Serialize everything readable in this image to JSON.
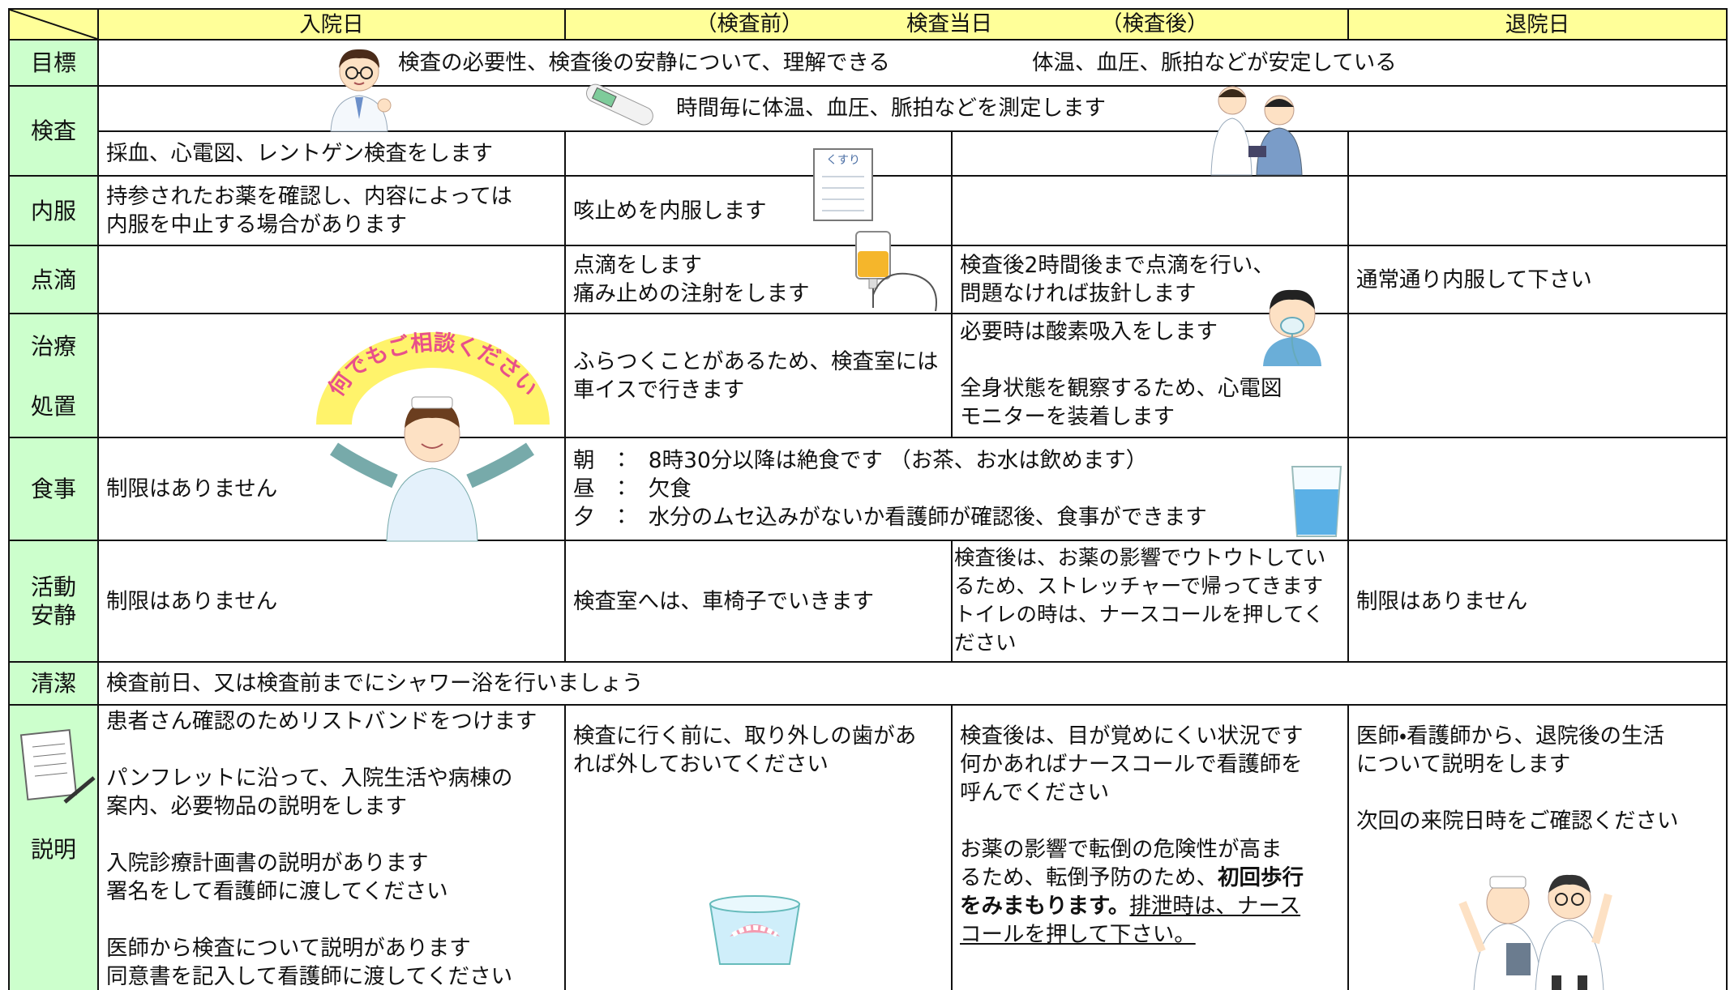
{
  "header": {
    "admission_day": "入院日",
    "before_exam": "（検査前）",
    "exam_day": "検査当日",
    "after_exam": "（検査後）",
    "discharge_day": "退院日"
  },
  "goal": {
    "label": "目標",
    "items": [
      "検査の必要性、検査後の安静について、理解できる",
      "体温、血圧、脈拍などが安定している"
    ]
  },
  "exam": {
    "label": "検査",
    "all_days": "時間毎に体温、血圧、脈拍などを測定します",
    "admission": "採血、心電図、レントゲン検査をします"
  },
  "medication": {
    "label": "内服",
    "admission": "持参されたお薬を確認し、内容によっては\n内服を中止する場合があります",
    "before_exam": "咳止めを内服します",
    "bag_label": "くすり"
  },
  "drip": {
    "label": "点滴",
    "before_exam": "点滴をします\n痛み止めの注射をします",
    "after_exam": "検査後2時間後まで点滴を行い、\n問題なければ抜針します",
    "discharge": "通常通り内服して下さい"
  },
  "treatment": {
    "label": [
      "治療",
      "処置"
    ],
    "callout": "何でもご相談ください",
    "before_exam": "ふらつくことがあるため、検査室には\n車イスで行きます",
    "after_exam": [
      "必要時は酸素吸入をします",
      "全身状態を観察するため、心電図\nモニターを装着します"
    ]
  },
  "meals": {
    "label": "食事",
    "admission": "制限はありません",
    "exam_day": [
      "朝　：　8時30分以降は絶食です （お茶、お水は飲めます）",
      "昼　：　欠食",
      "夕　：　水分のムセ込みがないか看護師が確認後、食事ができます"
    ]
  },
  "activity": {
    "label": "活動\n安静",
    "admission": "制限はありません",
    "before_exam": "検査室へは、車椅子でいきます",
    "after_exam": "検査後は、お薬の影響でウトウトしてい\nるため、ストレッチャーで帰ってきます\nトイレの時は、ナースコールを押してく\nださい",
    "discharge": "制限はありません"
  },
  "hygiene": {
    "label": "清潔",
    "text": "検査前日、又は検査前までにシャワー浴を行いましょう"
  },
  "explanation": {
    "label": "説明",
    "admission": [
      "患者さん確認のためリストバンドをつけます",
      "パンフレットに沿って、入院生活や病棟の\n案内、必要物品の説明をします",
      "入院診療計画書の説明があります\n署名をして看護師に渡してください",
      "医師から検査について説明があります\n同意書を記入して看護師に渡してください"
    ],
    "before_exam": "検査に行く前に、取り外しの歯があ\nれば外しておいてください",
    "after_exam": {
      "paragraph": "検査後は、目が覚めにくい状況です\n何かあればナースコールで看護師を\n呼んでください",
      "normal": "お薬の影響で転倒の危険性が高ま\nるため、転倒予防のため、",
      "bold": "初回歩行\nをみまもります。",
      "underlined": "排泄時は、ナース\nコールを押して下さい。"
    },
    "discharge": [
      "医師・看護師から、退院後の生活\nについて説明をします",
      "次回の来院日時をご確認ください"
    ]
  }
}
